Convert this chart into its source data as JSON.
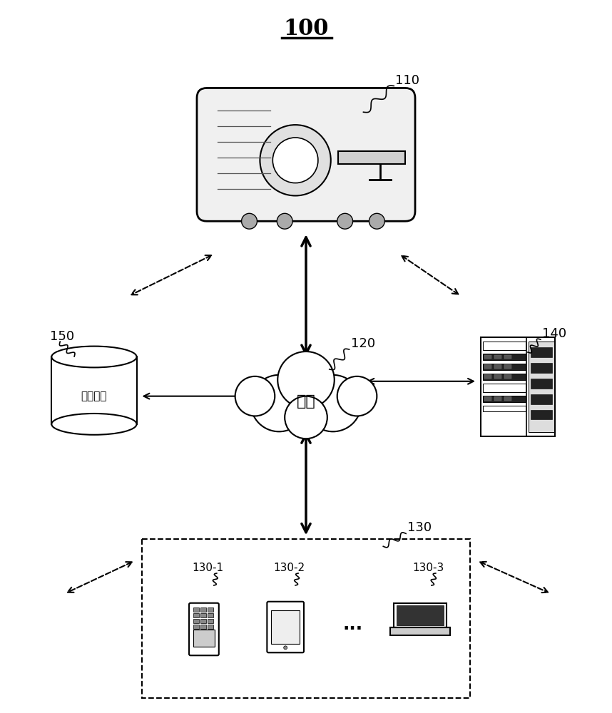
{
  "title": "100",
  "bg_color": "#ffffff",
  "text_color": "#000000",
  "labels": {
    "network": "网络",
    "storage": "存储设备",
    "label_110": "110",
    "label_120": "120",
    "label_130": "130",
    "label_130_1": "130-1",
    "label_130_2": "130-2",
    "label_130_3": "130-3",
    "label_140": "140",
    "label_150": "150"
  }
}
